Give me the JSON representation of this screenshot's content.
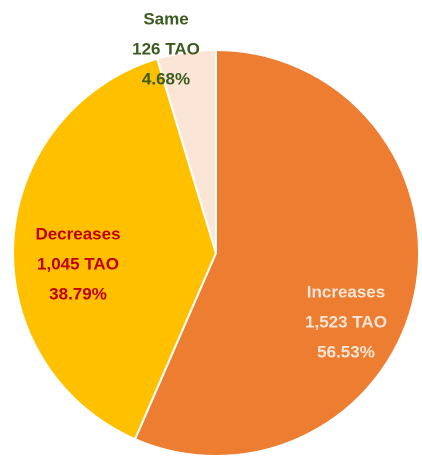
{
  "chart_data": {
    "type": "pie",
    "categories": [
      "Increases",
      "Decreases",
      "Same"
    ],
    "values": [
      56.53,
      38.79,
      4.68
    ],
    "value_labels": [
      "56.53%",
      "38.79%",
      "4.68%"
    ],
    "amount_labels": [
      "1,523 TAO",
      "1,045 TAO",
      "126 TAO"
    ],
    "colors": [
      "#ED7D31",
      "#FFC000",
      "#FBE5D6"
    ],
    "label_colors": [
      "#FBE5D6",
      "#C00000",
      "#3B5B1F"
    ]
  }
}
